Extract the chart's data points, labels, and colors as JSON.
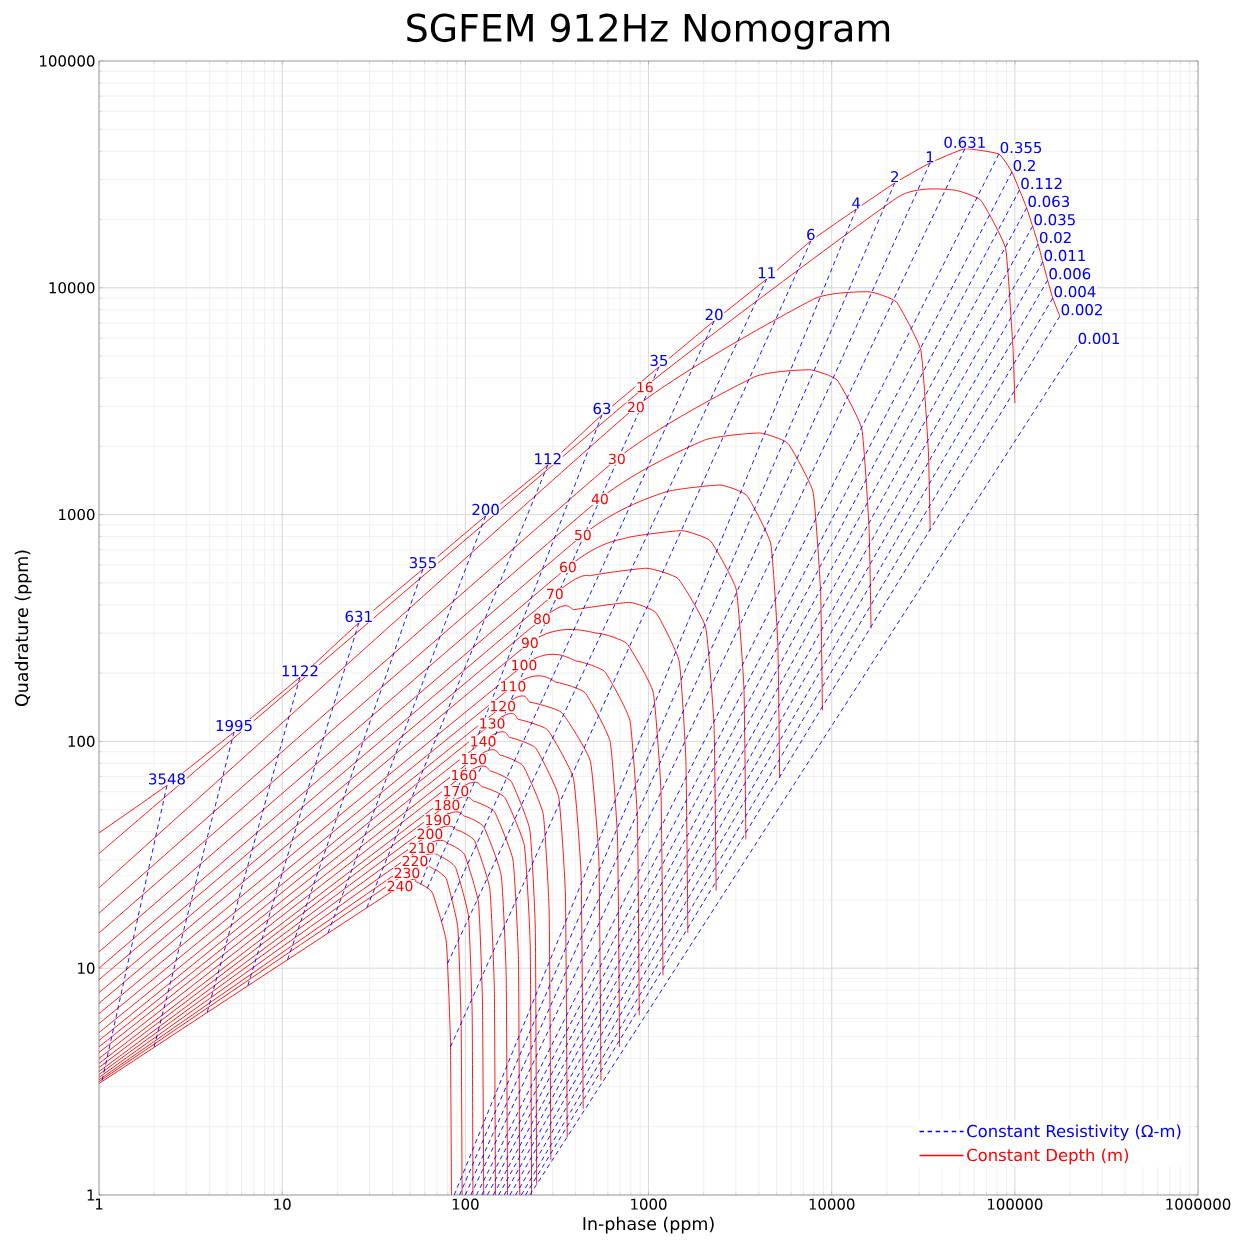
{
  "chart_data": {
    "type": "line",
    "title": "SGFEM 912Hz Nomogram",
    "xlabel": "In-phase (ppm)",
    "ylabel": "Quadrature (ppm)",
    "log": "xy",
    "grid": true,
    "legend": "bottom right",
    "xlim": [
      1,
      1000000
    ],
    "ylim": [
      1,
      100000
    ],
    "xticks": [
      1,
      10,
      100,
      1000,
      10000,
      100000,
      1000000
    ],
    "yticks": [
      1,
      10,
      100,
      1000,
      10000,
      100000
    ],
    "series": [
      {
        "name": "Constant Resistivity (Ω-m)",
        "color": "#0000ff",
        "line_style": "dashed",
        "x": [
          2.35,
          1.04
        ],
        "values": [
          64,
          3.2
        ]
      },
      {
        "color": "#0000ff",
        "line_style": "dashed",
        "x": [
          5.46,
          2.0
        ],
        "values": [
          110,
          4.5
        ]
      },
      {
        "color": "#0000ff",
        "line_style": "dashed",
        "x": [
          12.5,
          3.9
        ],
        "values": [
          192,
          6.4
        ]
      },
      {
        "color": "#0000ff",
        "line_style": "dashed",
        "x": [
          26.2,
          6.5
        ],
        "values": [
          333,
          8.4
        ]
      },
      {
        "color": "#0000ff",
        "line_style": "dashed",
        "x": [
          58.7,
          10.7
        ],
        "values": [
          575,
          10.9
        ]
      },
      {
        "color": "#0000ff",
        "line_style": "dashed",
        "x": [
          129,
          17.8
        ],
        "values": [
          986,
          14.3
        ]
      },
      {
        "color": "#0000ff",
        "line_style": "dashed",
        "x": [
          282,
          29
        ],
        "values": [
          1655,
          18.5
        ]
      },
      {
        "color": "#0000ff",
        "line_style": "dashed",
        "x": [
          557,
          57
        ],
        "values": [
          2750,
          23.4
        ]
      },
      {
        "color": "#0000ff",
        "line_style": "dashed",
        "x": [
          1140,
          62
        ],
        "values": [
          4480,
          22.5
        ]
      },
      {
        "color": "#0000ff",
        "line_style": "dashed",
        "x": [
          2280,
          74
        ],
        "values": [
          7140,
          16
        ]
      },
      {
        "color": "#0000ff",
        "line_style": "dashed",
        "x": [
          4420,
          80
        ],
        "values": [
          10940,
          10.5
        ]
      },
      {
        "color": "#0000ff",
        "line_style": "dashed",
        "x": [
          7700,
          83
        ],
        "values": [
          16100,
          4.5
        ]
      },
      {
        "color": "#0000ff",
        "line_style": "dashed",
        "x": [
          13600,
          87
        ],
        "values": [
          22200,
          1
        ]
      },
      {
        "color": "#0000ff",
        "line_style": "dashed",
        "x": [
          22100,
          93
        ],
        "values": [
          29000,
          1
        ]
      },
      {
        "color": "#0000ff",
        "line_style": "dashed",
        "x": [
          34400,
          100
        ],
        "values": [
          35500,
          1
        ]
      },
      {
        "color": "#0000ff",
        "line_style": "dashed",
        "x": [
          53300,
          107
        ],
        "values": [
          41000,
          1
        ]
      },
      {
        "color": "#0000ff",
        "line_style": "dashed",
        "x": [
          81800,
          115
        ],
        "values": [
          38900,
          1
        ]
      },
      {
        "color": "#0000ff",
        "line_style": "dashed",
        "x": [
          96300,
          123
        ],
        "values": [
          32400,
          1
        ]
      },
      {
        "color": "#0000ff",
        "line_style": "dashed",
        "x": [
          106000,
          132
        ],
        "values": [
          27000,
          1
        ]
      },
      {
        "color": "#0000ff",
        "line_style": "dashed",
        "x": [
          116000,
          142
        ],
        "values": [
          22500,
          1
        ]
      },
      {
        "color": "#0000ff",
        "line_style": "dashed",
        "x": [
          125000,
          152
        ],
        "values": [
          18700,
          1
        ]
      },
      {
        "color": "#0000ff",
        "line_style": "dashed",
        "x": [
          134000,
          163
        ],
        "values": [
          15600,
          1
        ]
      },
      {
        "color": "#0000ff",
        "line_style": "dashed",
        "x": [
          142000,
          175
        ],
        "values": [
          13000,
          1
        ]
      },
      {
        "color": "#0000ff",
        "line_style": "dashed",
        "x": [
          151000,
          188
        ],
        "values": [
          10800,
          1
        ]
      },
      {
        "color": "#0000ff",
        "line_style": "dashed",
        "x": [
          161000,
          202
        ],
        "values": [
          9000,
          1
        ]
      },
      {
        "color": "#0000ff",
        "line_style": "dashed",
        "x": [
          176000,
          213
        ],
        "values": [
          7500,
          1
        ]
      },
      {
        "color": "#0000ff",
        "line_style": "dashed",
        "x": [
          218000,
          225
        ],
        "values": [
          5600,
          1
        ]
      },
      {
        "name": "Constant Depth (m)",
        "color": "#ff0000",
        "line_style": "solid",
        "x": [
          1,
          2.35,
          5.46,
          12.5,
          26.2,
          58.7,
          129,
          282,
          557,
          1140,
          2280,
          4420,
          7700,
          13600,
          22100,
          34400,
          53300,
          81800,
          96300,
          106000,
          116000,
          125000,
          134000,
          142000,
          151000,
          161000,
          176000
        ],
        "values": [
          39.5,
          64,
          110,
          192,
          333,
          575,
          986,
          1655,
          2750,
          4480,
          7140,
          10940,
          16100,
          22200,
          29000,
          35500,
          41000,
          38900,
          32400,
          27000,
          22500,
          18700,
          15600,
          13000,
          10800,
          9000,
          7500
        ]
      },
      {
        "color": "#ff0000",
        "line_style": "solid",
        "x": [
          1,
          955,
          23000,
          46000,
          65200,
          89000,
          97700,
          100000
        ],
        "values": [
          32,
          3650,
          25100,
          27000,
          24300,
          14900,
          5400,
          3100
        ]
      },
      {
        "color": "#ff0000",
        "line_style": "solid",
        "x": [
          1,
          853,
          8000,
          16000,
          22600,
          30700,
          33700,
          34500
        ],
        "values": [
          22.6,
          2980,
          8930,
          9600,
          8640,
          5280,
          1920,
          850
        ]
      },
      {
        "color": "#ff0000",
        "line_style": "solid",
        "x": [
          1,
          672,
          3800,
          7600,
          10700,
          14600,
          16000,
          16400
        ],
        "values": [
          17.5,
          1760,
          4050,
          4350,
          3920,
          2390,
          870,
          315
        ]
      },
      {
        "color": "#ff0000",
        "line_style": "solid",
        "x": [
          1,
          543,
          2025,
          4050,
          5770,
          7910,
          8700,
          8900
        ],
        "values": [
          14.3,
          1172,
          2130,
          2290,
          2060,
          1260,
          458,
          137
        ]
      },
      {
        "color": "#ff0000",
        "line_style": "solid",
        "x": [
          1,
          438,
          1230,
          2460,
          3440,
          4650,
          5080,
          5200
        ],
        "values": [
          11.8,
          813,
          1256,
          1350,
          1215,
          743,
          270,
          69
        ]
      },
      {
        "color": "#ff0000",
        "line_style": "solid",
        "x": [
          1,
          363,
          760,
          1520,
          2180,
          3010,
          3320,
          3400
        ],
        "values": [
          10,
          587,
          790,
          850,
          765,
          468,
          170,
          37
        ]
      },
      {
        "color": "#ff0000",
        "line_style": "solid",
        "x": [
          1,
          308,
          490,
          980,
          1450,
          2050,
          2280,
          2340
        ],
        "values": [
          8.9,
          447,
          539,
          580,
          522,
          319,
          116,
          22
        ]
      },
      {
        "color": "#ff0000",
        "line_style": "solid",
        "x": [
          1,
          262,
          395,
          790,
          1100,
          1470,
          1600,
          1640
        ],
        "values": [
          7.8,
          347,
          381,
          410,
          369,
          226,
          82,
          14.3
        ]
      },
      {
        "color": "#ff0000",
        "line_style": "solid",
        "x": [
          1,
          225,
          525,
          762,
          1060,
          1170,
          1200
        ],
        "values": [
          7,
          272,
          300,
          270,
          165,
          60,
          9.3
        ]
      },
      {
        "color": "#ff0000",
        "line_style": "solid",
        "x": [
          1,
          209,
          405,
          577,
          791,
          870,
          890
        ],
        "values": [
          6.3,
          217,
          226,
          203,
          124,
          45.2,
          6.2
        ]
      },
      {
        "color": "#ff0000",
        "line_style": "solid",
        "x": [
          1,
          182,
          316,
          450,
          617,
          678,
          695
        ],
        "values": [
          5.7,
          175,
          182,
          164,
          100,
          36.4,
          4.5
        ]
      },
      {
        "color": "#ff0000",
        "line_style": "solid",
        "x": [
          1,
          160,
          225,
          336,
          481,
          536,
          550
        ],
        "values": [
          5.2,
          143,
          149,
          134,
          82,
          29.8,
          3.2
        ]
      },
      {
        "color": "#ff0000",
        "line_style": "solid",
        "x": [
          1,
          140,
          195,
          281,
          389,
          429,
          440
        ],
        "values": [
          4.8,
          120,
          125,
          112.5,
          68.8,
          25,
          2.4
        ]
      },
      {
        "color": "#ff0000",
        "line_style": "solid",
        "x": [
          1,
          125,
          175,
          242,
          323,
          352,
          360
        ],
        "values": [
          4.5,
          100,
          104,
          93.6,
          57.2,
          20.8,
          1.8
        ]
      },
      {
        "color": "#ff0000",
        "line_style": "solid",
        "x": [
          1,
          111,
          155,
          206,
          266,
          287,
          293
        ],
        "values": [
          4.25,
          83.6,
          87,
          78.3,
          47.9,
          17.4,
          1.43
        ]
      },
      {
        "color": "#ff0000",
        "line_style": "solid",
        "x": [
          1,
          98.2,
          137,
          178,
          225,
          241,
          245
        ],
        "values": [
          4,
          71.1,
          74,
          66.6,
          40.7,
          14.8,
          1.12
        ]
      },
      {
        "color": "#ff0000",
        "line_style": "solid",
        "x": [
          1,
          88.8,
          124,
          164,
          210,
          226,
          230
        ],
        "values": [
          3.8,
          60.4,
          63,
          56.7,
          34.7,
          12.6,
          1
        ]
      },
      {
        "color": "#ff0000",
        "line_style": "solid",
        "x": [
          1,
          79.4,
          111,
          144,
          182,
          195,
          198
        ],
        "values": [
          3.65,
          52.4,
          54.5,
          49,
          30,
          10.9,
          1
        ]
      },
      {
        "color": "#ff0000",
        "line_style": "solid",
        "x": [
          1,
          70.8,
          99,
          126,
          157,
          167,
          170
        ],
        "values": [
          3.5,
          45,
          46.8,
          42.1,
          25.7,
          9.4,
          1
        ]
      },
      {
        "color": "#ff0000",
        "line_style": "solid",
        "x": [
          1,
          64.1,
          90,
          112,
          136,
          144,
          146
        ],
        "values": [
          3.4,
          39.1,
          40.7,
          36.6,
          22.4,
          8.1,
          1
        ]
      },
      {
        "color": "#ff0000",
        "line_style": "solid",
        "x": [
          1,
          57.9,
          81,
          98.8,
          118,
          124,
          126
        ],
        "values": [
          3.3,
          33.9,
          35.3,
          31.8,
          19.4,
          7.1,
          1
        ]
      },
      {
        "color": "#ff0000",
        "line_style": "solid",
        "x": [
          1,
          53.1,
          74,
          88.4,
          104,
          109,
          110
        ],
        "values": [
          3.22,
          29.7,
          30.9,
          27.8,
          17,
          6.2,
          1
        ]
      },
      {
        "color": "#ff0000",
        "line_style": "solid",
        "x": [
          1,
          48,
          67,
          78.8,
          91,
          94.9,
          96
        ],
        "values": [
          3.16,
          26.3,
          27.4,
          24.7,
          15.1,
          5.5,
          1
        ]
      },
      {
        "color": "#ff0000",
        "line_style": "solid",
        "x": [
          1,
          44,
          54,
          65.9,
          78.6,
          82.9,
          84
        ],
        "values": [
          3.1,
          23,
          24,
          21.6,
          13.2,
          4.8,
          1
        ]
      }
    ],
    "annotations": [
      {
        "text": "3548",
        "x": 2.35,
        "y": 64
      },
      {
        "text": "1995",
        "x": 5.46,
        "y": 110
      },
      {
        "text": "1122",
        "x": 12.5,
        "y": 192
      },
      {
        "text": "631",
        "x": 26.2,
        "y": 333
      },
      {
        "text": "355",
        "x": 58.7,
        "y": 575
      },
      {
        "text": "200",
        "x": 129,
        "y": 986
      },
      {
        "text": "112",
        "x": 282,
        "y": 1655
      },
      {
        "text": "63",
        "x": 557,
        "y": 2750
      },
      {
        "text": "35",
        "x": 1140,
        "y": 4480
      },
      {
        "text": "20",
        "x": 2280,
        "y": 7140
      },
      {
        "text": "11",
        "x": 4420,
        "y": 10940
      },
      {
        "text": "6",
        "x": 7700,
        "y": 16100
      },
      {
        "text": "4",
        "x": 13600,
        "y": 22200
      },
      {
        "text": "2",
        "x": 22100,
        "y": 29000
      },
      {
        "text": "1",
        "x": 34400,
        "y": 35500
      },
      {
        "text": "0.631",
        "x": 53300,
        "y": 41000
      },
      {
        "text": "0.355",
        "x": 81800,
        "y": 38900
      },
      {
        "text": "0.2",
        "x": 96300,
        "y": 32400
      },
      {
        "text": "0.112",
        "x": 106000,
        "y": 27000
      },
      {
        "text": "0.063",
        "x": 116000,
        "y": 22500
      },
      {
        "text": "0.035",
        "x": 125000,
        "y": 18700
      },
      {
        "text": "0.02",
        "x": 134000,
        "y": 15600
      },
      {
        "text": "0.011",
        "x": 142000,
        "y": 13000
      },
      {
        "text": "0.006",
        "x": 151000,
        "y": 10800
      },
      {
        "text": "0.004",
        "x": 161000,
        "y": 9000
      },
      {
        "text": "0.002",
        "x": 176000,
        "y": 7500
      },
      {
        "text": "0.001",
        "x": 218000,
        "y": 5600
      },
      {
        "text": "16",
        "x": 955,
        "y": 3650
      },
      {
        "text": "20",
        "x": 853,
        "y": 2980
      },
      {
        "text": "30",
        "x": 672,
        "y": 1760
      },
      {
        "text": "40",
        "x": 543,
        "y": 1172
      },
      {
        "text": "50",
        "x": 438,
        "y": 813
      },
      {
        "text": "60",
        "x": 363,
        "y": 587
      },
      {
        "text": "70",
        "x": 308,
        "y": 447
      },
      {
        "text": "80",
        "x": 262,
        "y": 347
      },
      {
        "text": "90",
        "x": 225,
        "y": 272
      },
      {
        "text": "100",
        "x": 209,
        "y": 217
      },
      {
        "text": "110",
        "x": 182,
        "y": 175
      },
      {
        "text": "120",
        "x": 160,
        "y": 143
      },
      {
        "text": "130",
        "x": 140,
        "y": 120
      },
      {
        "text": "140",
        "x": 125,
        "y": 100
      },
      {
        "text": "150",
        "x": 111,
        "y": 83.6
      },
      {
        "text": "160",
        "x": 98.2,
        "y": 71.1
      },
      {
        "text": "170",
        "x": 88.8,
        "y": 60.4
      },
      {
        "text": "180",
        "x": 79.4,
        "y": 52.4
      },
      {
        "text": "190",
        "x": 70.8,
        "y": 45
      },
      {
        "text": "200",
        "x": 64.1,
        "y": 39.1
      },
      {
        "text": "210",
        "x": 57.9,
        "y": 33.9
      },
      {
        "text": "220",
        "x": 53.1,
        "y": 29.7
      },
      {
        "text": "230",
        "x": 48,
        "y": 26.3
      },
      {
        "text": "240",
        "x": 44,
        "y": 23
      }
    ]
  }
}
